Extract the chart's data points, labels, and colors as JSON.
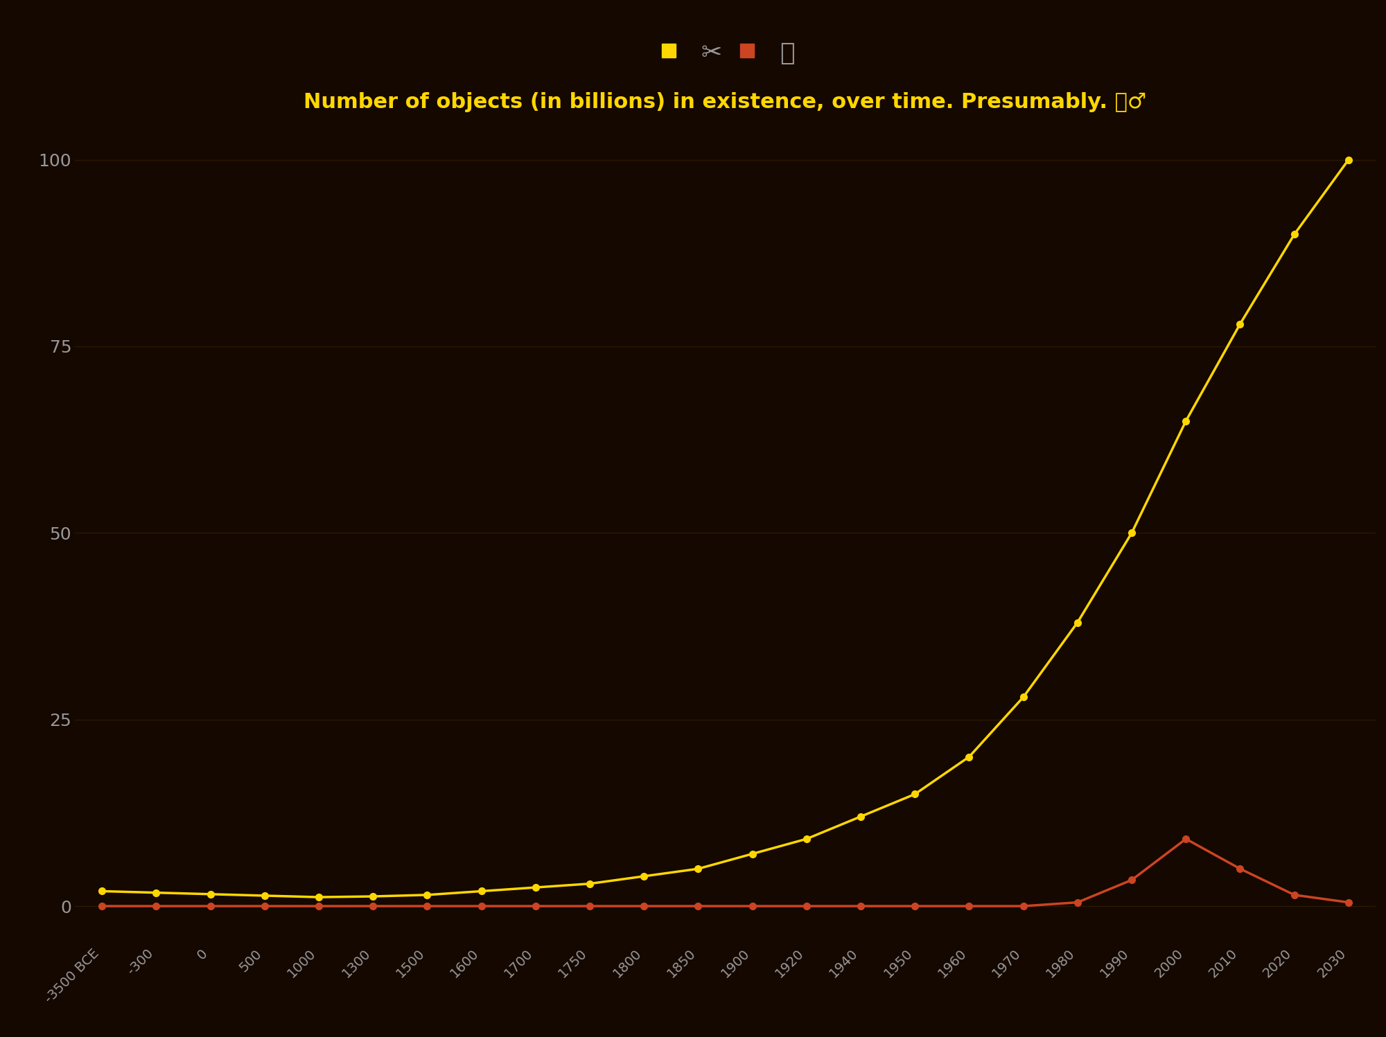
{
  "title": "Number of objects (in billions) in existence, over time. Presumably. 🤷‍♂️",
  "background_color": "#150800",
  "text_color": "#999999",
  "grid_color": "#2a1800",
  "scissors_label": "✂️",
  "floppy_label": "💾",
  "scissors_color": "#FFD700",
  "floppy_color": "#cc4422",
  "xtick_labels": [
    "-3500 BCE",
    "-300",
    "0",
    "500",
    "1000",
    "1300",
    "1500",
    "1600",
    "1700",
    "1750",
    "1800",
    "1850",
    "1900",
    "1920",
    "1940",
    "1950",
    "1960",
    "1970",
    "1980",
    "1990",
    "2000",
    "2010",
    "2020",
    "2030"
  ],
  "scissors_values": [
    2.0,
    1.8,
    1.6,
    1.4,
    1.2,
    1.3,
    1.5,
    2.0,
    2.5,
    3.0,
    4.0,
    5.0,
    7.0,
    9.0,
    12.0,
    15.0,
    20.0,
    28.0,
    38.0,
    50.0,
    65.0,
    78.0,
    90.0,
    100.0
  ],
  "floppy_values": [
    0.0,
    0.0,
    0.0,
    0.0,
    0.0,
    0.0,
    0.0,
    0.0,
    0.0,
    0.0,
    0.0,
    0.0,
    0.0,
    0.0,
    0.0,
    0.0,
    0.0,
    0.0,
    0.5,
    3.5,
    9.0,
    5.0,
    1.5,
    0.5
  ],
  "ylim": [
    -5,
    105
  ],
  "yticks": [
    0,
    25,
    50,
    75,
    100
  ],
  "line_width": 2.5,
  "marker_size": 7,
  "title_fontsize": 22,
  "tick_fontsize": 18,
  "legend_fontsize": 26
}
